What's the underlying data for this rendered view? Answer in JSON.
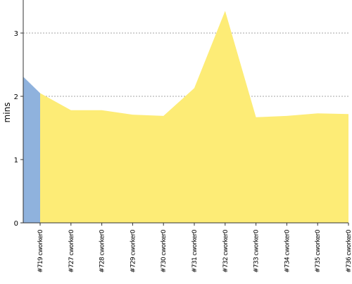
{
  "chart_data": {
    "type": "area",
    "title": "",
    "xlabel": "",
    "ylabel": "mins",
    "ylim": [
      0,
      3.5
    ],
    "yticks": [
      0,
      1,
      2,
      3
    ],
    "grid": true,
    "categories": [
      "#719 cworker0",
      "#727 cworker0",
      "#728 cworker0",
      "#729 cworker0",
      "#730 cworker0",
      "#731 cworker0",
      "#732 cworker0",
      "#733 cworker0",
      "#734 cworker0",
      "#735 cworker0",
      "#736 cworker0"
    ],
    "series": [
      {
        "color": "#fdec76",
        "values": [
          2.05,
          1.78,
          1.78,
          1.71,
          1.69,
          2.13,
          3.35,
          1.67,
          1.69,
          1.73,
          1.72
        ]
      },
      {
        "color": "#8fb2dd",
        "start_value": 2.31
      }
    ]
  }
}
